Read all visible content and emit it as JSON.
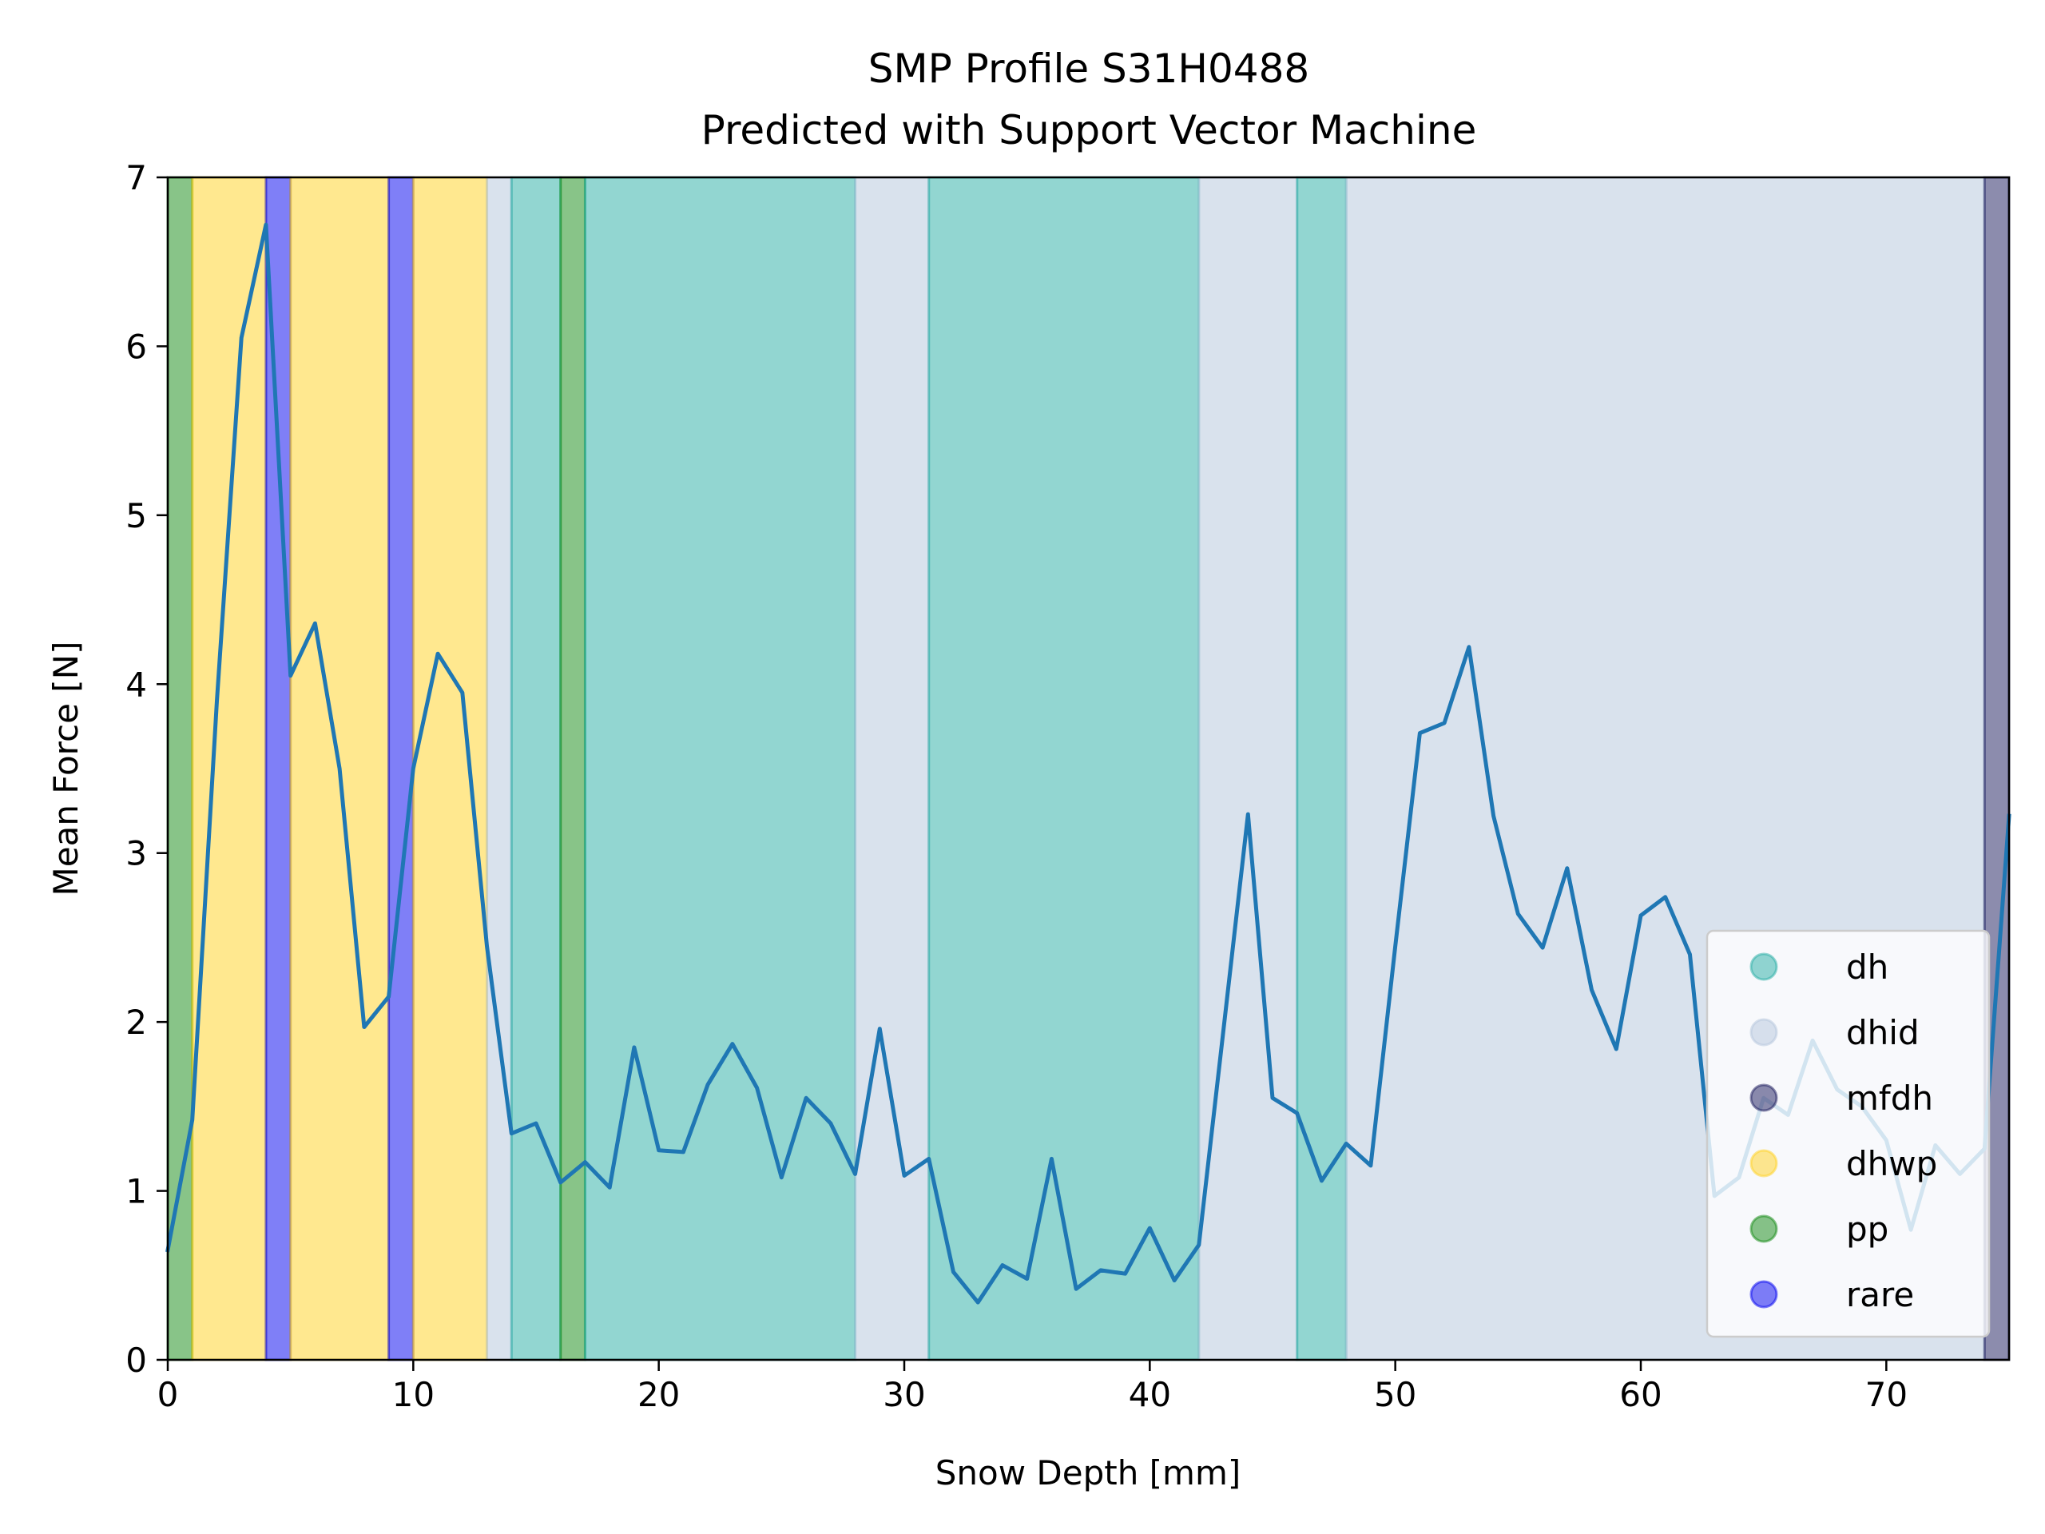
{
  "chart_data": {
    "type": "line",
    "title": "SMP Profile S31H0488",
    "subtitle": "Predicted with Support Vector Machine",
    "xlabel": "Snow Depth [mm]",
    "ylabel": "Mean Force [N]",
    "xlim": [
      0,
      75
    ],
    "ylim": [
      0,
      7
    ],
    "xticks": [
      0,
      10,
      20,
      30,
      40,
      50,
      60,
      70
    ],
    "yticks": [
      0,
      1,
      2,
      3,
      4,
      5,
      6,
      7
    ],
    "grid": false,
    "legend_position": "lower right",
    "line_color": "#1f77b4",
    "classes": [
      {
        "label": "dh",
        "color": "#26aea3"
      },
      {
        "label": "dhid",
        "color": "#b4c6dc"
      },
      {
        "label": "mfdh",
        "color": "#1a1a5c"
      },
      {
        "label": "dhwp",
        "color": "#ffd21f"
      },
      {
        "label": "pp",
        "color": "#128a12"
      },
      {
        "label": "rare",
        "color": "#0000f0"
      }
    ],
    "segments": [
      {
        "from": 0,
        "to": 1,
        "class": "pp"
      },
      {
        "from": 1,
        "to": 4,
        "class": "dhwp"
      },
      {
        "from": 4,
        "to": 5,
        "class": "rare"
      },
      {
        "from": 5,
        "to": 9,
        "class": "dhwp"
      },
      {
        "from": 9,
        "to": 10,
        "class": "rare"
      },
      {
        "from": 10,
        "to": 13,
        "class": "dhwp"
      },
      {
        "from": 13,
        "to": 14,
        "class": "dhid"
      },
      {
        "from": 14,
        "to": 16,
        "class": "dh"
      },
      {
        "from": 16,
        "to": 17,
        "class": "pp"
      },
      {
        "from": 17,
        "to": 28,
        "class": "dh"
      },
      {
        "from": 28,
        "to": 31,
        "class": "dhid"
      },
      {
        "from": 31,
        "to": 42,
        "class": "dh"
      },
      {
        "from": 42,
        "to": 46,
        "class": "dhid"
      },
      {
        "from": 46,
        "to": 48,
        "class": "dh"
      },
      {
        "from": 48,
        "to": 74,
        "class": "dhid"
      },
      {
        "from": 74,
        "to": 75,
        "class": "mfdh"
      }
    ],
    "series": [
      {
        "x": [
          0,
          1,
          2,
          3,
          4,
          5,
          6,
          7,
          8,
          9,
          10,
          11,
          12,
          13,
          14,
          15,
          16,
          17,
          18,
          19,
          20,
          21,
          22,
          23,
          24,
          25,
          26,
          27,
          28,
          29,
          30,
          31,
          32,
          33,
          34,
          35,
          36,
          37,
          38,
          39,
          40,
          41,
          42,
          43,
          44,
          45,
          46,
          47,
          48,
          49,
          50,
          51,
          52,
          53,
          54,
          55,
          56,
          57,
          58,
          59,
          60,
          61,
          62,
          63,
          64,
          65,
          66,
          67,
          68,
          69,
          70,
          71,
          72,
          73,
          74,
          75
        ],
        "y": [
          0.65,
          1.42,
          3.9,
          6.05,
          6.72,
          4.05,
          4.36,
          3.5,
          1.97,
          2.15,
          3.5,
          4.18,
          3.95,
          2.45,
          1.34,
          1.4,
          1.05,
          1.17,
          1.02,
          1.85,
          1.24,
          1.23,
          1.63,
          1.87,
          1.61,
          1.08,
          1.55,
          1.4,
          1.1,
          1.96,
          1.09,
          1.19,
          0.52,
          0.34,
          0.56,
          0.48,
          1.19,
          0.42,
          0.53,
          0.51,
          0.78,
          0.47,
          0.68,
          1.95,
          3.23,
          1.55,
          1.46,
          1.06,
          1.28,
          1.15,
          2.45,
          3.71,
          3.77,
          4.22,
          3.22,
          2.64,
          2.44,
          2.91,
          2.19,
          1.84,
          2.63,
          2.74,
          2.4,
          0.97,
          1.08,
          1.55,
          1.45,
          1.89,
          1.6,
          1.5,
          1.3,
          0.77,
          1.27,
          1.1,
          1.25,
          3.22
        ]
      }
    ]
  }
}
